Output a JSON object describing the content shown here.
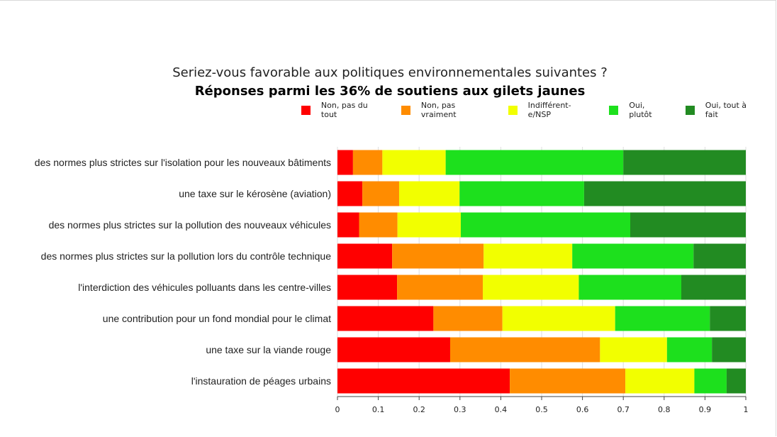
{
  "chart_data": {
    "type": "bar",
    "orientation": "horizontal",
    "stacked": true,
    "title": "Seriez-vous favorable aux politiques environnementales suivantes ?",
    "subtitle": "Réponses parmi les 36% de soutiens aux gilets jaunes",
    "xlabel": "",
    "ylabel": "",
    "xlim": [
      0,
      1
    ],
    "x_ticks": [
      "0",
      "0.1",
      "0.2",
      "0.3",
      "0.4",
      "0.5",
      "0.6",
      "0.7",
      "0.8",
      "0.9",
      "1"
    ],
    "grid": true,
    "legend_position": "top-right",
    "categories": [
      "des normes plus strictes sur l'isolation pour les nouveaux bâtiments",
      "une taxe sur le kérosène (aviation)",
      "des normes plus strictes sur la pollution des nouveaux véhicules",
      "des normes plus strictes sur la pollution lors du contrôle technique",
      "l'interdiction des véhicules polluants dans les centre-villes",
      "une contribution pour un fond mondial pour le climat",
      "une taxe sur la viande rouge",
      "l'instauration de péages urbains"
    ],
    "series": [
      {
        "name": "Non, pas du tout",
        "color": "#ff0000",
        "values": [
          0.038,
          0.061,
          0.053,
          0.134,
          0.146,
          0.235,
          0.276,
          0.422
        ]
      },
      {
        "name": "Non, pas vraiment",
        "color": "#ff8c00",
        "values": [
          0.072,
          0.09,
          0.094,
          0.224,
          0.21,
          0.169,
          0.367,
          0.283
        ]
      },
      {
        "name": "Indifférent-e/NSP",
        "color": "#f2ff00",
        "values": [
          0.155,
          0.148,
          0.155,
          0.217,
          0.235,
          0.276,
          0.164,
          0.169
        ]
      },
      {
        "name": "Oui, plutôt",
        "color": "#1de01d",
        "values": [
          0.435,
          0.305,
          0.415,
          0.297,
          0.251,
          0.232,
          0.11,
          0.079
        ]
      },
      {
        "name": "Oui, tout à fait",
        "color": "#228b22",
        "values": [
          0.3,
          0.396,
          0.283,
          0.128,
          0.158,
          0.088,
          0.083,
          0.047
        ]
      }
    ]
  }
}
